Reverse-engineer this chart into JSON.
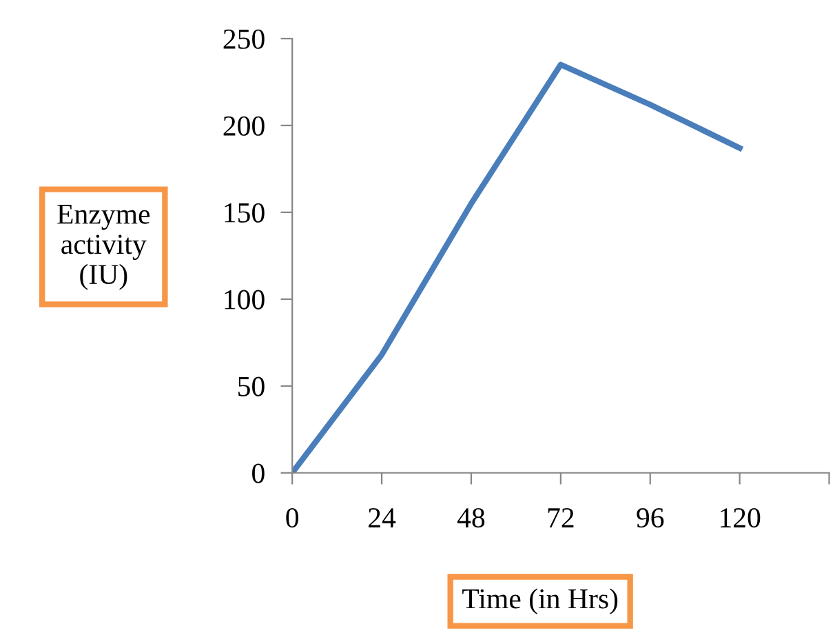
{
  "chart_data": {
    "type": "line",
    "xlabel": "Time (in Hrs)",
    "ylabel": "Enzyme\nactivity\n(IU)",
    "x": [
      0,
      24,
      48,
      72,
      96,
      120
    ],
    "series": [
      {
        "color": "#4a7ebb",
        "values": [
          0,
          68,
          155,
          235,
          212,
          187
        ]
      }
    ],
    "xlim": [
      0,
      144
    ],
    "xticks": [
      0,
      24,
      48,
      72,
      96,
      120,
      {
        "value": 144,
        "label": null
      }
    ],
    "ylim": [
      0,
      250
    ],
    "yticks": [
      0,
      50,
      100,
      150,
      200,
      250
    ],
    "grid": false,
    "legend": false,
    "marker": "none",
    "line_style": "solid"
  }
}
